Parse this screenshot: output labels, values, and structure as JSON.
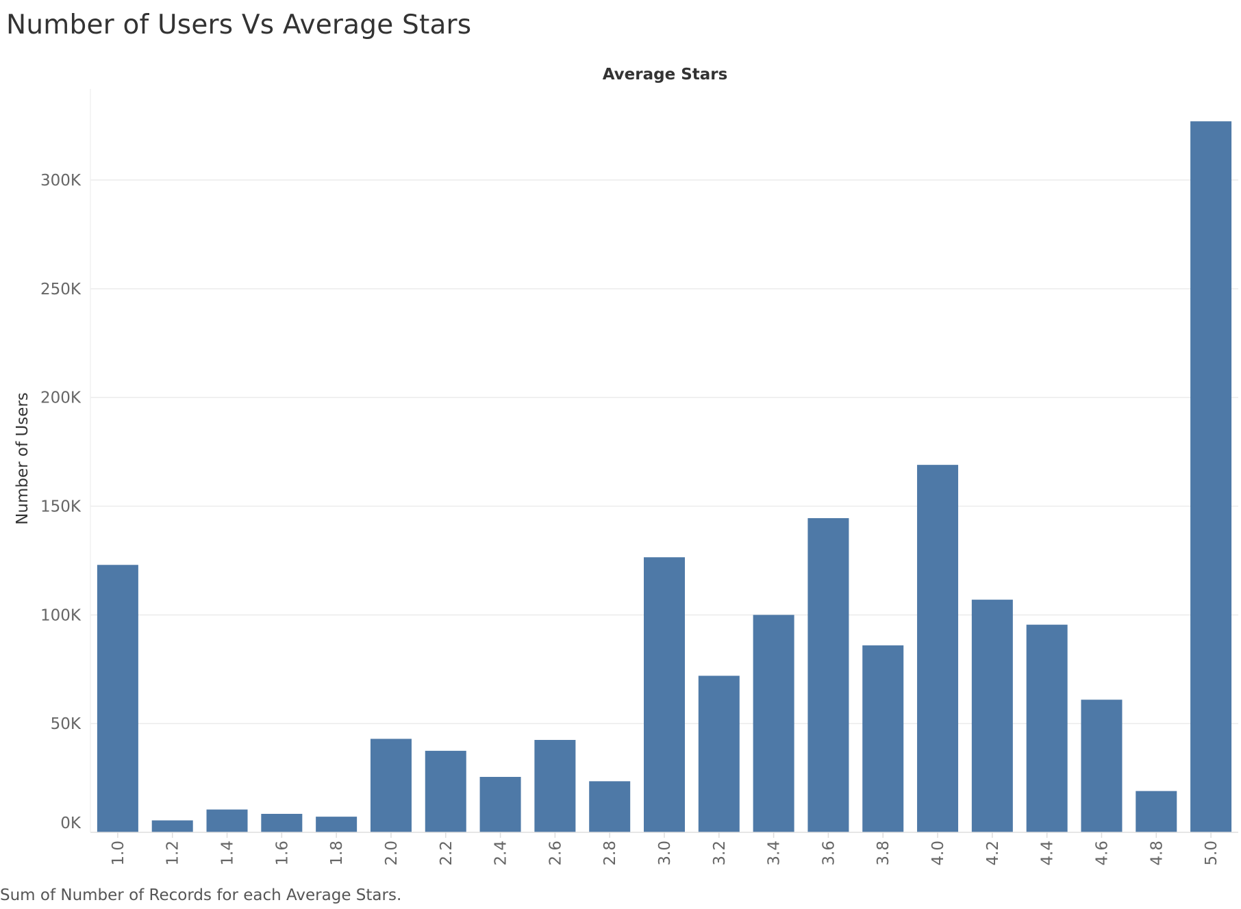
{
  "page": {
    "title": "Number of Users Vs Average Stars",
    "caption": "Sum of Number of Records for each Average Stars."
  },
  "chart_data": {
    "type": "bar",
    "column_header": "Average Stars",
    "xlabel": "",
    "ylabel": "Number of Users",
    "categories": [
      "1.0",
      "1.2",
      "1.4",
      "1.6",
      "1.8",
      "2.0",
      "2.2",
      "2.4",
      "2.6",
      "2.8",
      "3.0",
      "3.2",
      "3.4",
      "3.6",
      "3.8",
      "4.0",
      "4.2",
      "4.4",
      "4.6",
      "4.8",
      "5.0"
    ],
    "values": [
      123000,
      5500,
      10500,
      8500,
      7200,
      43000,
      37500,
      25500,
      42500,
      23500,
      126500,
      72000,
      100000,
      144500,
      86000,
      169000,
      107000,
      95500,
      61000,
      19000,
      327000
    ],
    "y_ticks": [
      0,
      50000,
      100000,
      150000,
      200000,
      250000,
      300000
    ],
    "y_tick_labels": [
      "0K",
      "50K",
      "100K",
      "150K",
      "200K",
      "250K",
      "300K"
    ],
    "ylim": [
      0,
      335000
    ],
    "grid": true,
    "colors": {
      "bar": "#4e79a7",
      "grid": "#ebebeb",
      "axis": "#dddddd"
    }
  }
}
